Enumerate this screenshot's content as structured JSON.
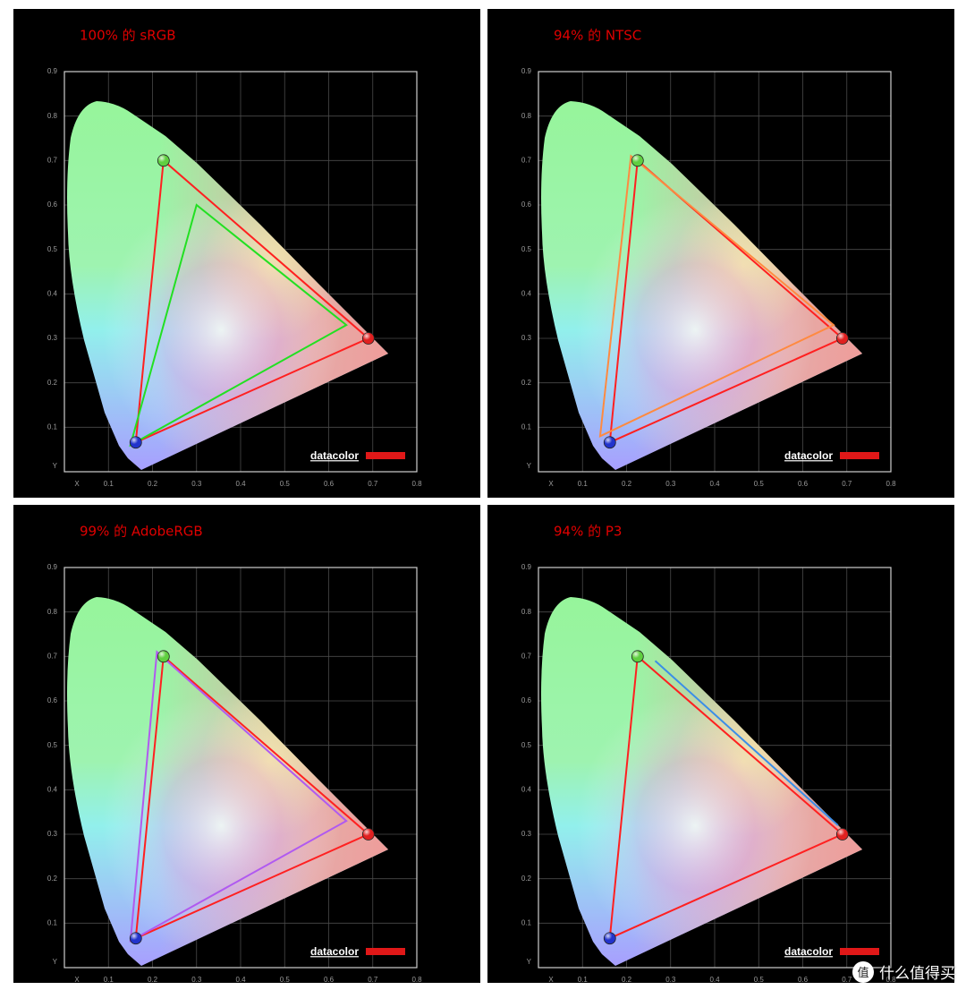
{
  "chart_data": [
    {
      "type": "gamut",
      "title": "100% 的 sRGB",
      "x_label": "X",
      "y_label": "Y",
      "logo": "datacolor",
      "xlim": [
        0,
        0.8
      ],
      "ylim": [
        0,
        0.9
      ],
      "xticks": [
        0.1,
        0.2,
        0.3,
        0.4,
        0.5,
        0.6,
        0.7,
        0.8
      ],
      "yticks": [
        0.1,
        0.2,
        0.3,
        0.4,
        0.5,
        0.6,
        0.7,
        0.8,
        0.9
      ],
      "grid": true,
      "series": [
        {
          "color": "#ff2020",
          "x": [
            0.69,
            0.225,
            0.162
          ],
          "y": [
            0.3,
            0.7,
            0.066
          ],
          "marker_colors": [
            "#e02020",
            "#5fcf40",
            "#2233cc"
          ]
        },
        {
          "color": "#22e022",
          "x": [
            0.64,
            0.3,
            0.15
          ],
          "y": [
            0.33,
            0.6,
            0.06
          ]
        }
      ]
    },
    {
      "type": "gamut",
      "title": "94% 的 NTSC",
      "x_label": "X",
      "y_label": "Y",
      "logo": "datacolor",
      "xlim": [
        0,
        0.8
      ],
      "ylim": [
        0,
        0.9
      ],
      "xticks": [
        0.1,
        0.2,
        0.3,
        0.4,
        0.5,
        0.6,
        0.7,
        0.8
      ],
      "yticks": [
        0.1,
        0.2,
        0.3,
        0.4,
        0.5,
        0.6,
        0.7,
        0.8,
        0.9
      ],
      "grid": true,
      "series": [
        {
          "color": "#ff2020",
          "x": [
            0.69,
            0.225,
            0.162
          ],
          "y": [
            0.3,
            0.7,
            0.066
          ],
          "marker_colors": [
            "#e02020",
            "#5fcf40",
            "#2233cc"
          ]
        },
        {
          "color": "#ff8a40",
          "x": [
            0.67,
            0.21,
            0.14
          ],
          "y": [
            0.33,
            0.71,
            0.08
          ]
        }
      ]
    },
    {
      "type": "gamut",
      "title": "99% 的 AdobeRGB",
      "x_label": "X",
      "y_label": "Y",
      "logo": "datacolor",
      "xlim": [
        0,
        0.8
      ],
      "ylim": [
        0,
        0.9
      ],
      "xticks": [
        0.1,
        0.2,
        0.3,
        0.4,
        0.5,
        0.6,
        0.7,
        0.8
      ],
      "yticks": [
        0.1,
        0.2,
        0.3,
        0.4,
        0.5,
        0.6,
        0.7,
        0.8,
        0.9
      ],
      "grid": true,
      "series": [
        {
          "color": "#ff2020",
          "x": [
            0.69,
            0.225,
            0.162
          ],
          "y": [
            0.3,
            0.7,
            0.066
          ],
          "marker_colors": [
            "#e02020",
            "#5fcf40",
            "#2233cc"
          ]
        },
        {
          "color": "#b05af0",
          "x": [
            0.64,
            0.21,
            0.15
          ],
          "y": [
            0.33,
            0.71,
            0.06
          ]
        }
      ]
    },
    {
      "type": "gamut",
      "title": "94% 的 P3",
      "x_label": "X",
      "y_label": "Y",
      "logo": "datacolor",
      "xlim": [
        0,
        0.8
      ],
      "ylim": [
        0,
        0.9
      ],
      "xticks": [
        0.1,
        0.2,
        0.3,
        0.4,
        0.5,
        0.6,
        0.7,
        0.8
      ],
      "yticks": [
        0.1,
        0.2,
        0.3,
        0.4,
        0.5,
        0.6,
        0.7,
        0.8,
        0.9
      ],
      "grid": true,
      "series": [
        {
          "color": "#ff2020",
          "x": [
            0.69,
            0.225,
            0.162
          ],
          "y": [
            0.3,
            0.7,
            0.066
          ],
          "marker_colors": [
            "#e02020",
            "#5fcf40",
            "#2233cc"
          ]
        },
        {
          "color": "#3a8ee8",
          "x": [
            0.68,
            0.265
          ],
          "y": [
            0.32,
            0.69
          ]
        }
      ]
    }
  ],
  "watermark": {
    "icon": "值",
    "text": "什么值得买"
  }
}
